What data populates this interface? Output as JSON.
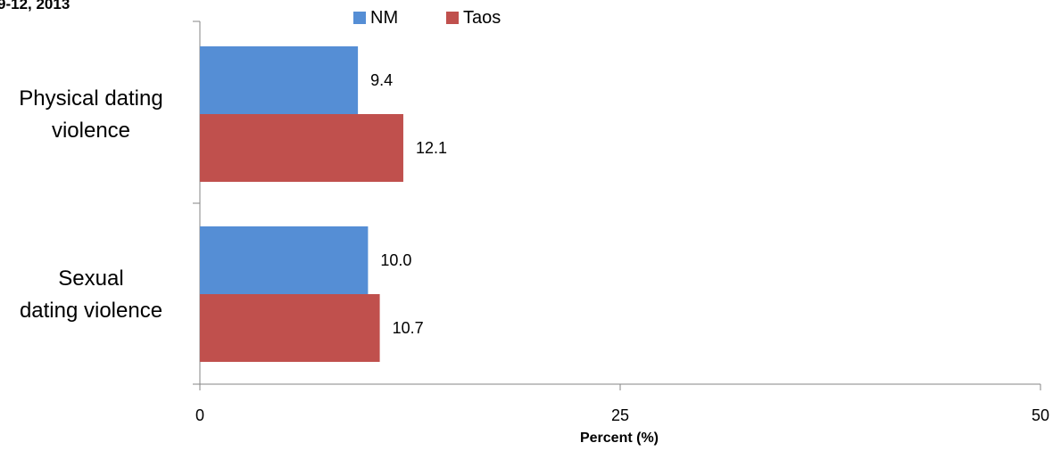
{
  "chart_data": {
    "type": "bar",
    "orientation": "horizontal",
    "title": "9-12, 2013",
    "categories": [
      "Physical dating violence",
      "Sexual dating violence"
    ],
    "category_label_lines": [
      [
        "Physical dating",
        "violence"
      ],
      [
        "Sexual",
        "dating violence"
      ]
    ],
    "series": [
      {
        "name": "NM",
        "values": [
          9.4,
          10.0
        ],
        "color": "#558ed5"
      },
      {
        "name": "Taos",
        "values": [
          12.1,
          10.7
        ],
        "color": "#c0504d"
      }
    ],
    "value_labels": [
      [
        "9.4",
        "10.0"
      ],
      [
        "12.1",
        "10.7"
      ]
    ],
    "xlabel": "Percent (%)",
    "xlim": [
      0,
      50
    ],
    "xticks": [
      "0",
      "25",
      "50"
    ],
    "grid": false,
    "legend_position": "top"
  }
}
